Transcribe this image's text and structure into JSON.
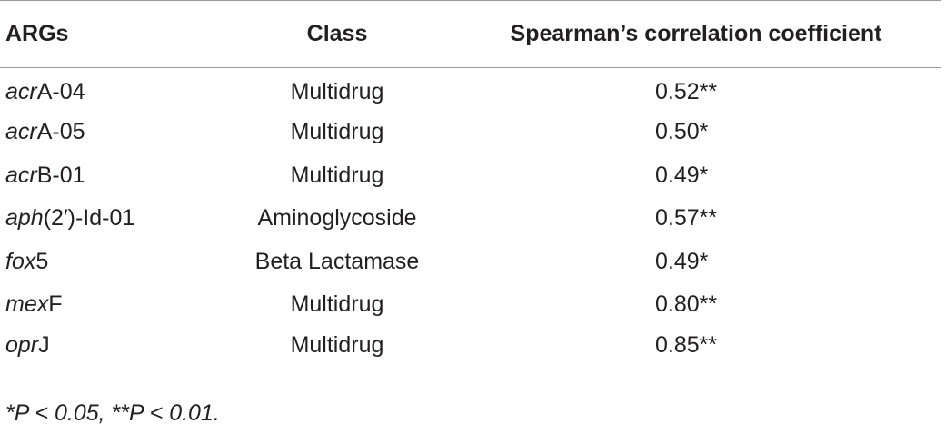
{
  "table": {
    "headers": [
      "ARGs",
      "Class",
      "Spearman’s correlation coefficient"
    ],
    "rows": [
      {
        "gene_italic": "acr",
        "gene_rest": "A-04",
        "class": "Multidrug",
        "coef": "0.52**"
      },
      {
        "gene_italic": "acr",
        "gene_rest": "A-05",
        "class": "Multidrug",
        "coef": "0.50*"
      },
      {
        "gene_italic": "acr",
        "gene_rest": "B-01",
        "class": "Multidrug",
        "coef": "0.49*"
      },
      {
        "gene_italic": "aph",
        "gene_rest": "(2′)-Id-01",
        "class": "Aminoglycoside",
        "coef": "0.57**"
      },
      {
        "gene_italic": "fox",
        "gene_rest": "5",
        "class": "Beta Lactamase",
        "coef": "0.49*"
      },
      {
        "gene_italic": "mex",
        "gene_rest": "F",
        "class": "Multidrug",
        "coef": "0.80**"
      },
      {
        "gene_italic": "opr",
        "gene_rest": "J",
        "class": "Multidrug",
        "coef": "0.85**"
      }
    ]
  },
  "footnote": "*P < 0.05, **P < 0.01."
}
